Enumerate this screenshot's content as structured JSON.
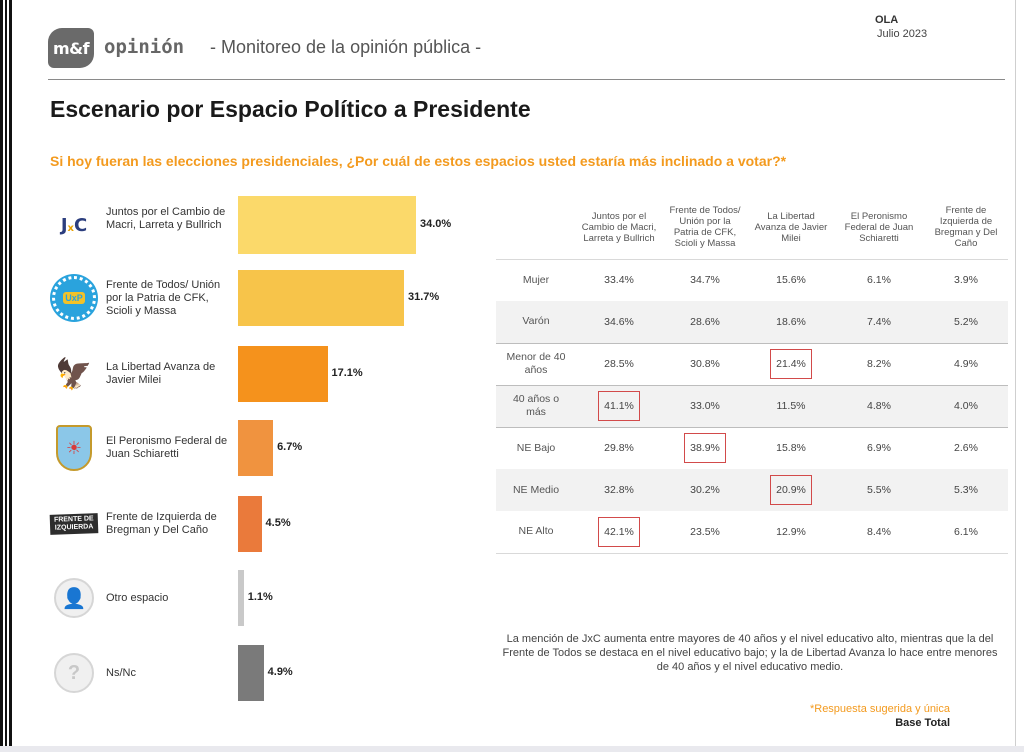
{
  "header": {
    "logo_mark": "m&f",
    "logo_word": "opinión",
    "subtitle": "- Monitoreo de la opinión pública -",
    "ola_label": "OLA",
    "ola_date": "Julio 2023"
  },
  "page_title": "Escenario por Espacio Político a Presidente",
  "question": "Si hoy fueran las elecciones presidenciales, ¿Por cuál de estos espacios usted estaría más inclinado a votar?*",
  "icons": {
    "jxc_main": "J",
    "jxc_x": "x",
    "jxc_c": "C",
    "fdt_text": "UxP",
    "la_symbol": "🦅",
    "pf_symbol": "☀",
    "fit_text": "FRENTE DE IZQUIERDA",
    "person_symbol": "👤",
    "question_symbol": "?"
  },
  "chart_data": {
    "type": "bar",
    "orientation": "horizontal",
    "categories": [
      "Juntos por el Cambio de Macri, Larreta y Bullrich",
      "Frente de Todos/ Unión por la Patria de CFK, Scioli y Massa",
      "La Libertad Avanza de Javier Milei",
      "El Peronismo Federal de Juan Schiaretti",
      "Frente de Izquierda de Bregman y Del Caño",
      "Otro espacio",
      "Ns/Nc"
    ],
    "values": [
      34.0,
      31.7,
      17.1,
      6.7,
      4.5,
      1.1,
      4.9
    ],
    "value_labels": [
      "34.0%",
      "31.7%",
      "17.1%",
      "6.7%",
      "4.5%",
      "1.1%",
      "4.9%"
    ],
    "colors": [
      "#fbd96a",
      "#f7c44a",
      "#f5921c",
      "#f0933f",
      "#ea7a3b",
      "#c9c9c9",
      "#7a7a7a"
    ],
    "icons": [
      "jxc-logo-icon",
      "fdt-logo-icon",
      "la-libertad-avanza-logo-icon",
      "peronismo-federal-logo-icon",
      "fit-logo-icon",
      "person-icon",
      "question-icon"
    ],
    "title": "",
    "xlabel": "",
    "ylabel": "",
    "xlim": [
      0,
      34.0
    ],
    "grid": false
  },
  "crosstab": {
    "columns": [
      "Juntos por el Cambio de Macri, Larreta y Bullrich",
      "Frente de Todos/ Unión por la Patria de CFK, Scioli y Massa",
      "La Libertad Avanza de Javier Milei",
      "El Peronismo Federal de Juan Schiaretti",
      "Frente de Izquierda de Bregman y Del Caño"
    ],
    "rows": [
      {
        "label": "Mujer",
        "values": [
          "33.4%",
          "34.7%",
          "15.6%",
          "6.1%",
          "3.9%"
        ],
        "highlight": -1
      },
      {
        "label": "Varón",
        "values": [
          "34.6%",
          "28.6%",
          "18.6%",
          "7.4%",
          "5.2%"
        ],
        "highlight": -1
      },
      {
        "label": "Menor de 40 años",
        "values": [
          "28.5%",
          "30.8%",
          "21.4%",
          "8.2%",
          "4.9%"
        ],
        "highlight": 2
      },
      {
        "label": "40 años o más",
        "values": [
          "41.1%",
          "33.0%",
          "11.5%",
          "4.8%",
          "4.0%"
        ],
        "highlight": 0
      },
      {
        "label": "NE Bajo",
        "values": [
          "29.8%",
          "38.9%",
          "15.8%",
          "6.9%",
          "2.6%"
        ],
        "highlight": 1
      },
      {
        "label": "NE Medio",
        "values": [
          "32.8%",
          "30.2%",
          "20.9%",
          "5.5%",
          "5.3%"
        ],
        "highlight": 2
      },
      {
        "label": "NE Alto",
        "values": [
          "42.1%",
          "23.5%",
          "12.9%",
          "8.4%",
          "6.1%"
        ],
        "highlight": 0
      }
    ]
  },
  "note": "La mención de JxC aumenta entre mayores de 40 años y el nivel educativo alto, mientras que la del Frente de Todos se destaca en el nivel educativo bajo; y la de Libertad Avanza lo hace entre menores de 40 años y el nivel educativo medio.",
  "footnote": "*Respuesta sugerida y única",
  "base": "Base Total"
}
